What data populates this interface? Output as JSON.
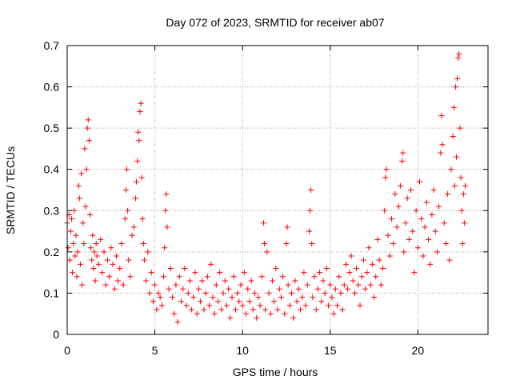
{
  "chart_data": {
    "type": "scatter",
    "title": "Day 072 of 2023, SRMTID for receiver ab07",
    "xlabel": "GPS time / hours",
    "ylabel": "SRMTID / TECUs",
    "xlim": [
      0,
      24
    ],
    "ylim": [
      0,
      0.7
    ],
    "xticks": [
      0,
      5,
      10,
      15,
      20
    ],
    "xtick_labels": [
      "0",
      "5",
      "10",
      "15",
      "20"
    ],
    "yticks": [
      0,
      0.1,
      0.2,
      0.3,
      0.4,
      0.5,
      0.6,
      0.7
    ],
    "ytick_labels": [
      "0",
      "0.1",
      "0.2",
      "0.3",
      "0.4",
      "0.5",
      "0.6",
      "0.7"
    ],
    "grid": true,
    "marker": "plus",
    "color": "#ff0000",
    "series": [
      {
        "name": "SRMTID",
        "points": [
          [
            0.0,
            0.27
          ],
          [
            0.05,
            0.21
          ],
          [
            0.1,
            0.29
          ],
          [
            0.15,
            0.18
          ],
          [
            0.2,
            0.25
          ],
          [
            0.25,
            0.28
          ],
          [
            0.3,
            0.15
          ],
          [
            0.35,
            0.22
          ],
          [
            0.4,
            0.3
          ],
          [
            0.45,
            0.19
          ],
          [
            0.5,
            0.24
          ],
          [
            0.55,
            0.14
          ],
          [
            0.6,
            0.2
          ],
          [
            0.65,
            0.36
          ],
          [
            0.7,
            0.33
          ],
          [
            0.75,
            0.17
          ],
          [
            0.8,
            0.39
          ],
          [
            0.85,
            0.12
          ],
          [
            0.9,
            0.27
          ],
          [
            0.95,
            0.22
          ],
          [
            1.0,
            0.45
          ],
          [
            1.05,
            0.31
          ],
          [
            1.1,
            0.4
          ],
          [
            1.15,
            0.5
          ],
          [
            1.2,
            0.52
          ],
          [
            1.25,
            0.47
          ],
          [
            1.3,
            0.29
          ],
          [
            1.35,
            0.21
          ],
          [
            1.4,
            0.18
          ],
          [
            1.45,
            0.24
          ],
          [
            1.5,
            0.16
          ],
          [
            1.55,
            0.2
          ],
          [
            1.6,
            0.13
          ],
          [
            1.65,
            0.22
          ],
          [
            1.7,
            0.19
          ],
          [
            1.8,
            0.17
          ],
          [
            1.9,
            0.23
          ],
          [
            2.0,
            0.15
          ],
          [
            2.1,
            0.2
          ],
          [
            2.2,
            0.12
          ],
          [
            2.3,
            0.18
          ],
          [
            2.4,
            0.14
          ],
          [
            2.5,
            0.21
          ],
          [
            2.6,
            0.17
          ],
          [
            2.7,
            0.11
          ],
          [
            2.8,
            0.19
          ],
          [
            2.9,
            0.13
          ],
          [
            3.0,
            0.16
          ],
          [
            3.1,
            0.22
          ],
          [
            3.2,
            0.12
          ],
          [
            3.3,
            0.28
          ],
          [
            3.35,
            0.35
          ],
          [
            3.4,
            0.4
          ],
          [
            3.45,
            0.3
          ],
          [
            3.5,
            0.18
          ],
          [
            3.6,
            0.14
          ],
          [
            3.7,
            0.24
          ],
          [
            3.8,
            0.26
          ],
          [
            3.9,
            0.33
          ],
          [
            3.95,
            0.37
          ],
          [
            4.0,
            0.42
          ],
          [
            4.05,
            0.49
          ],
          [
            4.1,
            0.47
          ],
          [
            4.15,
            0.54
          ],
          [
            4.2,
            0.56
          ],
          [
            4.25,
            0.38
          ],
          [
            4.3,
            0.28
          ],
          [
            4.35,
            0.22
          ],
          [
            4.4,
            0.18
          ],
          [
            4.5,
            0.13
          ],
          [
            4.6,
            0.2
          ],
          [
            4.7,
            0.1
          ],
          [
            4.8,
            0.15
          ],
          [
            4.9,
            0.08
          ],
          [
            5.0,
            0.12
          ],
          [
            5.1,
            0.06
          ],
          [
            5.2,
            0.1
          ],
          [
            5.3,
            0.09
          ],
          [
            5.4,
            0.07
          ],
          [
            5.5,
            0.14
          ],
          [
            5.55,
            0.21
          ],
          [
            5.6,
            0.3
          ],
          [
            5.65,
            0.34
          ],
          [
            5.7,
            0.26
          ],
          [
            5.8,
            0.11
          ],
          [
            5.9,
            0.16
          ],
          [
            6.0,
            0.09
          ],
          [
            6.1,
            0.05
          ],
          [
            6.2,
            0.12
          ],
          [
            6.3,
            0.03
          ],
          [
            6.4,
            0.14
          ],
          [
            6.5,
            0.08
          ],
          [
            6.6,
            0.11
          ],
          [
            6.7,
            0.16
          ],
          [
            6.8,
            0.07
          ],
          [
            6.9,
            0.1
          ],
          [
            7.0,
            0.13
          ],
          [
            7.1,
            0.06
          ],
          [
            7.2,
            0.09
          ],
          [
            7.3,
            0.15
          ],
          [
            7.4,
            0.05
          ],
          [
            7.5,
            0.11
          ],
          [
            7.6,
            0.08
          ],
          [
            7.7,
            0.13
          ],
          [
            7.8,
            0.06
          ],
          [
            7.9,
            0.1
          ],
          [
            8.0,
            0.14
          ],
          [
            8.1,
            0.07
          ],
          [
            8.2,
            0.17
          ],
          [
            8.3,
            0.09
          ],
          [
            8.4,
            0.05
          ],
          [
            8.5,
            0.12
          ],
          [
            8.6,
            0.08
          ],
          [
            8.7,
            0.15
          ],
          [
            8.8,
            0.06
          ],
          [
            8.9,
            0.1
          ],
          [
            9.0,
            0.13
          ],
          [
            9.1,
            0.07
          ],
          [
            9.2,
            0.11
          ],
          [
            9.3,
            0.04
          ],
          [
            9.4,
            0.09
          ],
          [
            9.5,
            0.14
          ],
          [
            9.6,
            0.06
          ],
          [
            9.7,
            0.1
          ],
          [
            9.8,
            0.08
          ],
          [
            9.9,
            0.12
          ],
          [
            10.0,
            0.07
          ],
          [
            10.1,
            0.15
          ],
          [
            10.2,
            0.05
          ],
          [
            10.3,
            0.11
          ],
          [
            10.4,
            0.08
          ],
          [
            10.5,
            0.13
          ],
          [
            10.6,
            0.06
          ],
          [
            10.7,
            0.1
          ],
          [
            10.8,
            0.04
          ],
          [
            10.9,
            0.09
          ],
          [
            11.0,
            0.07
          ],
          [
            11.1,
            0.14
          ],
          [
            11.2,
            0.27
          ],
          [
            11.25,
            0.22
          ],
          [
            11.3,
            0.06
          ],
          [
            11.4,
            0.2
          ],
          [
            11.5,
            0.1
          ],
          [
            11.6,
            0.05
          ],
          [
            11.7,
            0.13
          ],
          [
            11.8,
            0.08
          ],
          [
            11.9,
            0.16
          ],
          [
            12.0,
            0.06
          ],
          [
            12.1,
            0.11
          ],
          [
            12.2,
            0.09
          ],
          [
            12.3,
            0.14
          ],
          [
            12.4,
            0.05
          ],
          [
            12.5,
            0.22
          ],
          [
            12.55,
            0.26
          ],
          [
            12.6,
            0.12
          ],
          [
            12.7,
            0.07
          ],
          [
            12.8,
            0.1
          ],
          [
            12.9,
            0.04
          ],
          [
            13.0,
            0.13
          ],
          [
            13.1,
            0.08
          ],
          [
            13.2,
            0.11
          ],
          [
            13.3,
            0.06
          ],
          [
            13.4,
            0.09
          ],
          [
            13.5,
            0.15
          ],
          [
            13.6,
            0.07
          ],
          [
            13.7,
            0.12
          ],
          [
            13.8,
            0.25
          ],
          [
            13.85,
            0.3
          ],
          [
            13.9,
            0.35
          ],
          [
            13.95,
            0.22
          ],
          [
            14.0,
            0.09
          ],
          [
            14.1,
            0.14
          ],
          [
            14.2,
            0.06
          ],
          [
            14.3,
            0.11
          ],
          [
            14.4,
            0.15
          ],
          [
            14.5,
            0.08
          ],
          [
            14.6,
            0.13
          ],
          [
            14.7,
            0.1
          ],
          [
            14.8,
            0.16
          ],
          [
            14.9,
            0.07
          ],
          [
            15.0,
            0.12
          ],
          [
            15.1,
            0.09
          ],
          [
            15.2,
            0.05
          ],
          [
            15.3,
            0.11
          ],
          [
            15.4,
            0.07
          ],
          [
            15.5,
            0.14
          ],
          [
            15.6,
            0.1
          ],
          [
            15.7,
            0.06
          ],
          [
            15.8,
            0.12
          ],
          [
            15.9,
            0.17
          ],
          [
            16.0,
            0.11
          ],
          [
            16.1,
            0.15
          ],
          [
            16.2,
            0.19
          ],
          [
            16.3,
            0.13
          ],
          [
            16.4,
            0.1
          ],
          [
            16.5,
            0.16
          ],
          [
            16.6,
            0.12
          ],
          [
            16.7,
            0.07
          ],
          [
            16.8,
            0.14
          ],
          [
            16.9,
            0.18
          ],
          [
            17.0,
            0.11
          ],
          [
            17.1,
            0.15
          ],
          [
            17.2,
            0.21
          ],
          [
            17.3,
            0.12
          ],
          [
            17.4,
            0.17
          ],
          [
            17.5,
            0.09
          ],
          [
            17.6,
            0.14
          ],
          [
            17.7,
            0.23
          ],
          [
            17.8,
            0.18
          ],
          [
            17.9,
            0.12
          ],
          [
            18.0,
            0.16
          ],
          [
            18.1,
            0.3
          ],
          [
            18.15,
            0.38
          ],
          [
            18.2,
            0.4
          ],
          [
            18.3,
            0.24
          ],
          [
            18.4,
            0.19
          ],
          [
            18.5,
            0.28
          ],
          [
            18.6,
            0.22
          ],
          [
            18.7,
            0.34
          ],
          [
            18.8,
            0.26
          ],
          [
            18.9,
            0.31
          ],
          [
            19.0,
            0.36
          ],
          [
            19.1,
            0.42
          ],
          [
            19.15,
            0.44
          ],
          [
            19.2,
            0.2
          ],
          [
            19.3,
            0.27
          ],
          [
            19.4,
            0.33
          ],
          [
            19.5,
            0.23
          ],
          [
            19.6,
            0.35
          ],
          [
            19.7,
            0.25
          ],
          [
            19.8,
            0.15
          ],
          [
            19.9,
            0.3
          ],
          [
            20.0,
            0.21
          ],
          [
            20.1,
            0.37
          ],
          [
            20.2,
            0.28
          ],
          [
            20.3,
            0.19
          ],
          [
            20.4,
            0.26
          ],
          [
            20.5,
            0.32
          ],
          [
            20.6,
            0.23
          ],
          [
            20.7,
            0.17
          ],
          [
            20.8,
            0.29
          ],
          [
            20.9,
            0.35
          ],
          [
            21.0,
            0.25
          ],
          [
            21.1,
            0.2
          ],
          [
            21.2,
            0.31
          ],
          [
            21.3,
            0.44
          ],
          [
            21.35,
            0.53
          ],
          [
            21.4,
            0.46
          ],
          [
            21.5,
            0.27
          ],
          [
            21.6,
            0.22
          ],
          [
            21.7,
            0.34
          ],
          [
            21.8,
            0.18
          ],
          [
            21.9,
            0.4
          ],
          [
            22.0,
            0.48
          ],
          [
            22.05,
            0.55
          ],
          [
            22.1,
            0.36
          ],
          [
            22.15,
            0.6
          ],
          [
            22.2,
            0.43
          ],
          [
            22.25,
            0.62
          ],
          [
            22.3,
            0.67
          ],
          [
            22.35,
            0.68
          ],
          [
            22.4,
            0.5
          ],
          [
            22.45,
            0.38
          ],
          [
            22.5,
            0.3
          ],
          [
            22.55,
            0.22
          ],
          [
            22.6,
            0.34
          ],
          [
            22.65,
            0.27
          ],
          [
            22.7,
            0.36
          ]
        ]
      }
    ]
  }
}
